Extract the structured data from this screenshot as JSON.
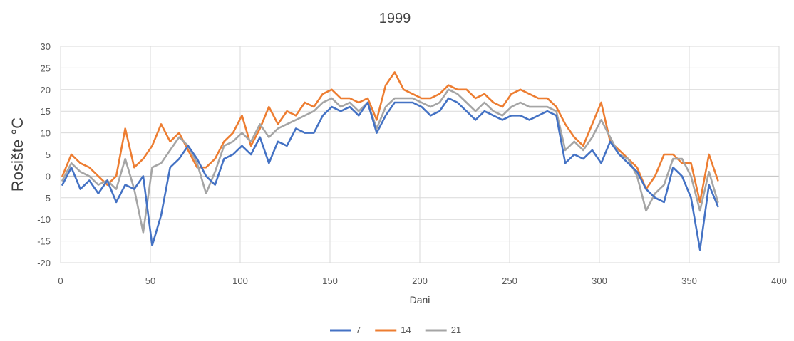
{
  "chart_data": {
    "type": "line",
    "title": "1999",
    "xlabel": "Dani",
    "ylabel": "Rosište °C",
    "xlim": [
      0,
      400
    ],
    "ylim": [
      -20,
      30
    ],
    "x_ticks": [
      0,
      50,
      100,
      150,
      200,
      250,
      300,
      350,
      400
    ],
    "y_ticks": [
      -20,
      -15,
      -10,
      -5,
      0,
      5,
      10,
      15,
      20,
      25,
      30
    ],
    "grid": true,
    "legend_position": "bottom",
    "x": [
      1,
      6,
      11,
      16,
      21,
      26,
      31,
      36,
      41,
      46,
      51,
      56,
      61,
      66,
      71,
      76,
      81,
      86,
      91,
      96,
      101,
      106,
      111,
      116,
      121,
      126,
      131,
      136,
      141,
      146,
      151,
      156,
      161,
      166,
      171,
      176,
      181,
      186,
      191,
      196,
      201,
      206,
      211,
      216,
      221,
      226,
      231,
      236,
      241,
      246,
      251,
      256,
      261,
      266,
      271,
      276,
      281,
      286,
      291,
      296,
      301,
      306,
      311,
      316,
      321,
      326,
      331,
      336,
      341,
      346,
      351,
      356,
      361,
      366
    ],
    "series": [
      {
        "name": "7",
        "color": "#4472C4",
        "values": [
          -2,
          2,
          -3,
          -1,
          -4,
          -1,
          -6,
          -2,
          -3,
          0,
          -16,
          -9,
          2,
          4,
          7,
          4,
          0,
          -2,
          4,
          5,
          7,
          5,
          9,
          3,
          8,
          7,
          11,
          10,
          10,
          14,
          16,
          15,
          16,
          14,
          17,
          10,
          14,
          17,
          17,
          17,
          16,
          14,
          15,
          18,
          17,
          15,
          13,
          15,
          14,
          13,
          14,
          14,
          13,
          14,
          15,
          14,
          3,
          5,
          4,
          6,
          3,
          8,
          5,
          3,
          1,
          -3,
          -5,
          -6,
          2,
          0,
          -5,
          -17,
          -2,
          -7
        ]
      },
      {
        "name": "14",
        "color": "#ED7D31",
        "values": [
          0,
          5,
          3,
          2,
          0,
          -2,
          0,
          11,
          2,
          4,
          7,
          12,
          8,
          10,
          6,
          2,
          2,
          4,
          8,
          10,
          14,
          7,
          11,
          16,
          12,
          15,
          14,
          17,
          16,
          19,
          20,
          18,
          18,
          17,
          18,
          13,
          21,
          24,
          20,
          19,
          18,
          18,
          19,
          21,
          20,
          20,
          18,
          19,
          17,
          16,
          19,
          20,
          19,
          18,
          18,
          16,
          12,
          9,
          7,
          12,
          17,
          8,
          6,
          4,
          2,
          -3,
          0,
          5,
          5,
          3,
          3,
          -6,
          5,
          -1
        ]
      },
      {
        "name": "21",
        "color": "#A5A5A5",
        "values": [
          -1,
          3,
          1,
          0,
          -2,
          -1,
          -3,
          4,
          -3,
          -13,
          2,
          3,
          6,
          9,
          7,
          3,
          -4,
          1,
          7,
          8,
          10,
          8,
          12,
          9,
          11,
          12,
          13,
          14,
          15,
          17,
          18,
          16,
          17,
          15,
          17,
          11,
          16,
          18,
          18,
          18,
          17,
          16,
          17,
          20,
          19,
          17,
          15,
          17,
          15,
          14,
          16,
          17,
          16,
          16,
          16,
          15,
          6,
          8,
          6,
          9,
          13,
          9,
          5,
          4,
          0,
          -8,
          -4,
          -2,
          4,
          4,
          0,
          -8,
          1,
          -6
        ]
      }
    ]
  }
}
